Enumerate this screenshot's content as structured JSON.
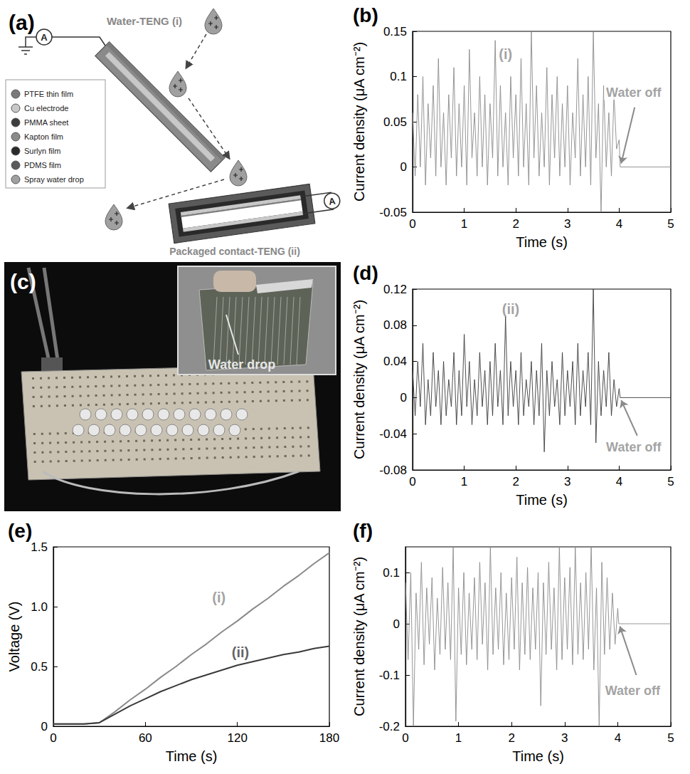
{
  "diagram": {
    "label": "(a)",
    "devices": [
      {
        "label": "Water-TENG (i)"
      },
      {
        "label": "Packaged contact-TENG (ii)"
      }
    ],
    "meter": "A",
    "legend": [
      {
        "text": "PTFE thin film",
        "color": "#7a7a7a"
      },
      {
        "text": "Cu electrode",
        "color": "#c8c8c8"
      },
      {
        "text": "PMMA sheet",
        "color": "#3c3c3c"
      },
      {
        "text": "Kapton film",
        "color": "#8a8a8a"
      },
      {
        "text": "Surlyn film",
        "color": "#2a2a2a"
      },
      {
        "text": "PDMS film",
        "color": "#5a5a5a"
      },
      {
        "text": "Spray water drop",
        "color": "#a0a0a0"
      }
    ]
  },
  "photo": {
    "label": "(c)",
    "annotation": "Water drop"
  },
  "chart_data": [
    {
      "type": "line",
      "title": "(b)",
      "xlabel": "Time (s)",
      "ylabel": "Current density (μA cm⁻²)",
      "grid": false,
      "color": "#8a8a8a",
      "xlim": [
        0,
        5
      ],
      "xticks": [
        0,
        1,
        2,
        3,
        4,
        5
      ],
      "ylim": [
        -0.05,
        0.15
      ],
      "yticks": [
        -0.05,
        0,
        0.05,
        0.1,
        0.15
      ],
      "x": [
        0,
        0.05,
        0.1,
        0.15,
        0.2,
        0.25,
        0.3,
        0.35,
        0.4,
        0.45,
        0.5,
        0.55,
        0.6,
        0.65,
        0.7,
        0.75,
        0.8,
        0.85,
        0.9,
        0.95,
        1,
        1.05,
        1.1,
        1.15,
        1.2,
        1.25,
        1.3,
        1.35,
        1.4,
        1.45,
        1.5,
        1.55,
        1.6,
        1.65,
        1.7,
        1.75,
        1.8,
        1.85,
        1.9,
        1.95,
        2,
        2.05,
        2.1,
        2.15,
        2.2,
        2.25,
        2.3,
        2.35,
        2.4,
        2.45,
        2.5,
        2.55,
        2.6,
        2.65,
        2.7,
        2.75,
        2.8,
        2.85,
        2.9,
        2.95,
        3,
        3.05,
        3.1,
        3.15,
        3.2,
        3.25,
        3.3,
        3.35,
        3.4,
        3.45,
        3.5,
        3.55,
        3.6,
        3.65,
        3.7,
        3.75,
        3.8,
        3.85,
        3.9,
        3.95,
        4,
        4.02,
        5
      ],
      "values": [
        0.06,
        -0.01,
        0.08,
        0.0,
        0.1,
        -0.02,
        0.07,
        0.01,
        0.09,
        -0.01,
        0.12,
        0.0,
        0.06,
        -0.02,
        0.08,
        0.01,
        0.11,
        -0.01,
        0.07,
        0.0,
        0.09,
        -0.02,
        0.13,
        0.01,
        0.06,
        -0.01,
        0.1,
        0.0,
        0.08,
        -0.02,
        0.07,
        0.01,
        0.14,
        -0.01,
        0.09,
        0.0,
        0.06,
        -0.02,
        0.1,
        0.01,
        0.08,
        -0.01,
        0.12,
        0.0,
        0.07,
        -0.02,
        0.15,
        0.01,
        0.09,
        -0.01,
        0.06,
        0.0,
        0.11,
        -0.02,
        0.08,
        0.01,
        0.1,
        -0.01,
        0.07,
        0.0,
        0.09,
        -0.02,
        0.06,
        0.01,
        0.12,
        -0.01,
        0.08,
        0.0,
        0.1,
        -0.02,
        0.15,
        0.01,
        0.07,
        -0.05,
        0.09,
        0.0,
        0.06,
        -0.01,
        0.08,
        0.02,
        0.03,
        0,
        0
      ],
      "annotations": [
        {
          "text": "(i)",
          "x": 1.8,
          "y": 0.125,
          "color": "#8a8a8a"
        },
        {
          "text": "Water off",
          "x": 4.28,
          "y": 0.082,
          "color": "#8a8a8a",
          "arrow": [
            [
              4.3,
              0.066
            ],
            [
              4.04,
              0.004
            ]
          ]
        }
      ]
    },
    {
      "type": "line",
      "title": "(d)",
      "xlabel": "Time (s)",
      "ylabel": "Current density (μA cm⁻²)",
      "grid": false,
      "color": "#3a3a3a",
      "xlim": [
        0,
        5
      ],
      "xticks": [
        0,
        1,
        2,
        3,
        4,
        5
      ],
      "ylim": [
        -0.08,
        0.12
      ],
      "yticks": [
        -0.08,
        -0.04,
        0,
        0.04,
        0.08,
        0.12
      ],
      "x": [
        0,
        0.05,
        0.1,
        0.15,
        0.2,
        0.25,
        0.3,
        0.35,
        0.4,
        0.45,
        0.5,
        0.55,
        0.6,
        0.65,
        0.7,
        0.75,
        0.8,
        0.85,
        0.9,
        0.95,
        1,
        1.05,
        1.1,
        1.15,
        1.2,
        1.25,
        1.3,
        1.35,
        1.4,
        1.45,
        1.5,
        1.55,
        1.6,
        1.65,
        1.7,
        1.75,
        1.8,
        1.85,
        1.9,
        1.95,
        2,
        2.05,
        2.1,
        2.15,
        2.2,
        2.25,
        2.3,
        2.35,
        2.4,
        2.45,
        2.5,
        2.55,
        2.6,
        2.65,
        2.7,
        2.75,
        2.8,
        2.85,
        2.9,
        2.95,
        3,
        3.05,
        3.1,
        3.15,
        3.2,
        3.25,
        3.3,
        3.35,
        3.4,
        3.45,
        3.5,
        3.55,
        3.6,
        3.65,
        3.7,
        3.75,
        3.8,
        3.85,
        3.9,
        3.95,
        4,
        4.02,
        5
      ],
      "values": [
        0.03,
        -0.02,
        0.04,
        -0.01,
        0.06,
        -0.03,
        0.02,
        -0.02,
        0.05,
        -0.01,
        0.03,
        -0.03,
        0.04,
        -0.02,
        0.02,
        -0.01,
        0.05,
        -0.03,
        0.03,
        -0.02,
        0.07,
        -0.01,
        0.04,
        -0.03,
        0.02,
        -0.02,
        0.05,
        -0.01,
        0.03,
        -0.03,
        0.04,
        -0.02,
        0.06,
        -0.01,
        0.03,
        -0.03,
        0.09,
        -0.02,
        0.04,
        -0.01,
        0.03,
        -0.03,
        0.05,
        -0.02,
        0.02,
        -0.01,
        0.04,
        -0.03,
        0.03,
        -0.02,
        0.06,
        -0.06,
        0.03,
        -0.02,
        0.04,
        -0.01,
        0.02,
        -0.03,
        0.05,
        -0.02,
        0.03,
        -0.01,
        0.04,
        -0.03,
        0.06,
        -0.02,
        0.03,
        -0.01,
        0.05,
        -0.03,
        0.12,
        -0.05,
        0.04,
        -0.02,
        0.03,
        -0.01,
        0.05,
        -0.02,
        0.02,
        -0.01,
        0.01,
        0,
        0
      ],
      "annotations": [
        {
          "text": "(ii)",
          "x": 1.9,
          "y": 0.098,
          "color": "#8a8a8a"
        },
        {
          "text": "Water off",
          "x": 4.28,
          "y": -0.055,
          "color": "#8a8a8a",
          "arrow": [
            [
              4.35,
              -0.042
            ],
            [
              4.04,
              -0.003
            ]
          ]
        }
      ]
    },
    {
      "type": "line",
      "title": "(e)",
      "xlabel": "Time (s)",
      "ylabel": "Voltage (V)",
      "grid": false,
      "xlim": [
        0,
        180
      ],
      "xticks": [
        0,
        60,
        120,
        180
      ],
      "ylim": [
        0,
        1.5
      ],
      "yticks": [
        0,
        {
          "value": 0.5,
          "label": "0.5"
        },
        {
          "value": 1,
          "label": "1.0"
        },
        {
          "value": 1.5,
          "label": "1.5"
        }
      ],
      "x": [
        0,
        10,
        20,
        30,
        40,
        50,
        60,
        70,
        80,
        90,
        100,
        110,
        120,
        130,
        140,
        150,
        160,
        170,
        180
      ],
      "series": [
        {
          "color": "#8a8a8a",
          "values": [
            0.02,
            0.02,
            0.02,
            0.03,
            0.12,
            0.22,
            0.31,
            0.41,
            0.5,
            0.6,
            0.69,
            0.79,
            0.88,
            0.98,
            1.07,
            1.17,
            1.26,
            1.36,
            1.45
          ]
        },
        {
          "color": "#3a3a3a",
          "values": [
            0.02,
            0.02,
            0.02,
            0.03,
            0.1,
            0.17,
            0.23,
            0.29,
            0.34,
            0.39,
            0.43,
            0.47,
            0.51,
            0.54,
            0.57,
            0.6,
            0.62,
            0.65,
            0.67
          ]
        }
      ],
      "annotations": [
        {
          "text": "(i)",
          "x": 108,
          "y": 1.08,
          "color": "#8a8a8a"
        },
        {
          "text": "(ii)",
          "x": 122,
          "y": 0.62,
          "color": "#3a3a3a"
        }
      ]
    },
    {
      "type": "line",
      "title": "(f)",
      "xlabel": "Time (s)",
      "ylabel": "Current density (μA cm⁻²)",
      "grid": false,
      "color": "#8a8a8a",
      "xlim": [
        0,
        5
      ],
      "xticks": [
        0,
        1,
        2,
        3,
        4,
        5
      ],
      "ylim": [
        -0.2,
        0.15
      ],
      "yticks": [
        -0.2,
        -0.1,
        0,
        0.1
      ],
      "x": [
        0,
        0.05,
        0.1,
        0.15,
        0.2,
        0.25,
        0.3,
        0.35,
        0.4,
        0.45,
        0.5,
        0.55,
        0.6,
        0.65,
        0.7,
        0.75,
        0.8,
        0.85,
        0.9,
        0.95,
        1,
        1.05,
        1.1,
        1.15,
        1.2,
        1.25,
        1.3,
        1.35,
        1.4,
        1.45,
        1.5,
        1.55,
        1.6,
        1.65,
        1.7,
        1.75,
        1.8,
        1.85,
        1.9,
        1.95,
        2,
        2.05,
        2.1,
        2.15,
        2.2,
        2.25,
        2.3,
        2.35,
        2.4,
        2.45,
        2.5,
        2.55,
        2.6,
        2.65,
        2.7,
        2.75,
        2.8,
        2.85,
        2.9,
        2.95,
        3,
        3.05,
        3.1,
        3.15,
        3.2,
        3.25,
        3.3,
        3.35,
        3.4,
        3.45,
        3.5,
        3.55,
        3.6,
        3.65,
        3.7,
        3.75,
        3.8,
        3.85,
        3.9,
        3.95,
        4,
        4.02,
        5
      ],
      "values": [
        0.08,
        -0.07,
        0.1,
        -0.2,
        0.06,
        -0.05,
        0.12,
        -0.08,
        0.07,
        -0.04,
        0.09,
        -0.09,
        0.05,
        -0.06,
        0.11,
        -0.05,
        0.08,
        -0.07,
        0.15,
        -0.19,
        0.07,
        -0.06,
        0.1,
        -0.08,
        0.06,
        -0.05,
        0.09,
        -0.07,
        0.12,
        -0.04,
        0.08,
        -0.09,
        0.15,
        -0.06,
        0.07,
        -0.05,
        0.1,
        -0.08,
        0.06,
        -0.07,
        0.09,
        -0.05,
        0.13,
        -0.09,
        0.08,
        -0.06,
        0.11,
        -0.07,
        0.07,
        -0.05,
        0.1,
        -0.16,
        0.08,
        -0.06,
        0.12,
        -0.05,
        0.07,
        -0.09,
        0.15,
        -0.07,
        0.09,
        -0.05,
        0.11,
        -0.08,
        0.15,
        -0.06,
        0.08,
        -0.07,
        0.1,
        -0.05,
        0.15,
        -0.09,
        0.07,
        -0.2,
        0.12,
        -0.06,
        0.09,
        -0.05,
        0.06,
        -0.04,
        0.03,
        0,
        0
      ],
      "annotations": [
        {
          "text": "Water off",
          "x": 4.28,
          "y": -0.13,
          "color": "#8a8a8a",
          "arrow": [
            [
              4.35,
              -0.1
            ],
            [
              4.04,
              -0.005
            ]
          ]
        }
      ]
    }
  ]
}
